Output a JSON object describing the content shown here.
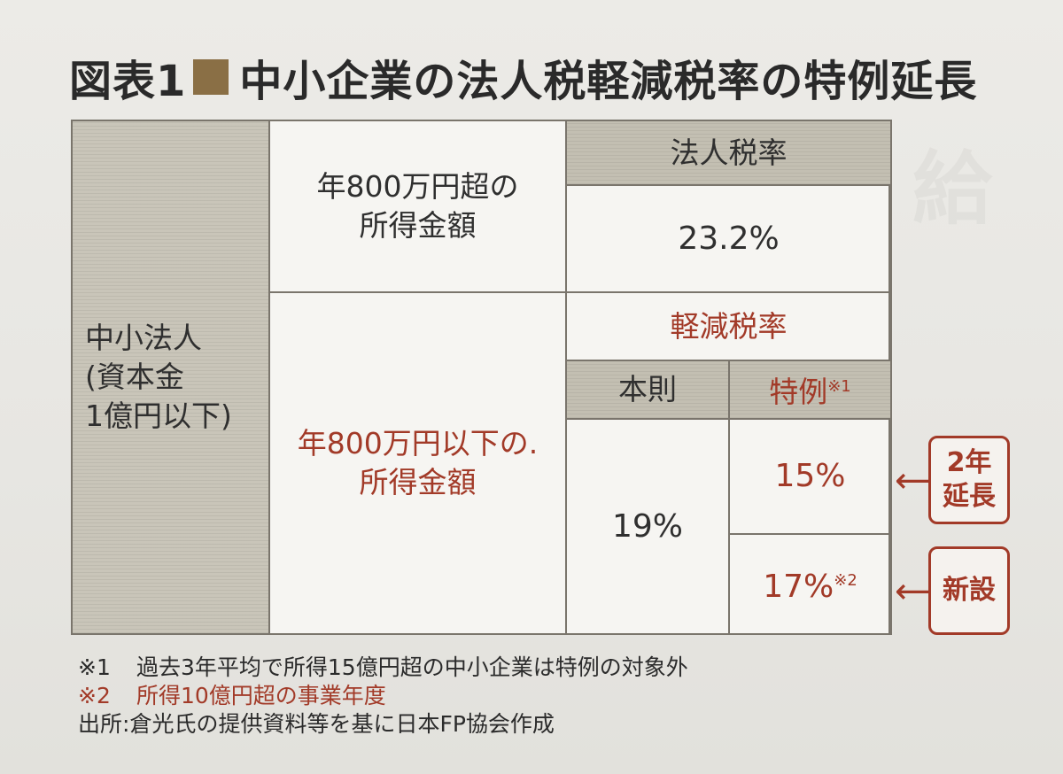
{
  "page": {
    "title_prefix": "図表1",
    "title_text": "中小企業の法人税軽減税率の特例延長"
  },
  "table": {
    "left_label": "中小法人\n(資本金\n1億円以下)",
    "row1_label": "年800万円超の\n所得金額",
    "header_corporate": "法人税率",
    "rate_standard": "23.2%",
    "row2_label": "年800万円以下の.\n所得金額",
    "header_reduced": "軽減税率",
    "header_principle": "本則",
    "header_special": "特例",
    "header_special_note": "※1",
    "rate_principle": "19%",
    "rate_special_extended": "15%",
    "rate_special_new": "17%",
    "rate_special_new_note": "※2"
  },
  "callouts": {
    "extended": "2年\n延長",
    "new": "新設"
  },
  "notes": [
    {
      "key": "※1",
      "text": "過去3年平均で所得15億円超の中小企業は特例の対象外"
    },
    {
      "key": "※2",
      "text": "所得10億円超の事業年度"
    },
    {
      "key": "出所:",
      "text": "倉光氏の提供資料等を基に日本FP協会作成"
    }
  ],
  "colors": {
    "accent_red": "#a23a28",
    "header_fill": "#c3bfb2",
    "title_square": "#8a6f45"
  }
}
